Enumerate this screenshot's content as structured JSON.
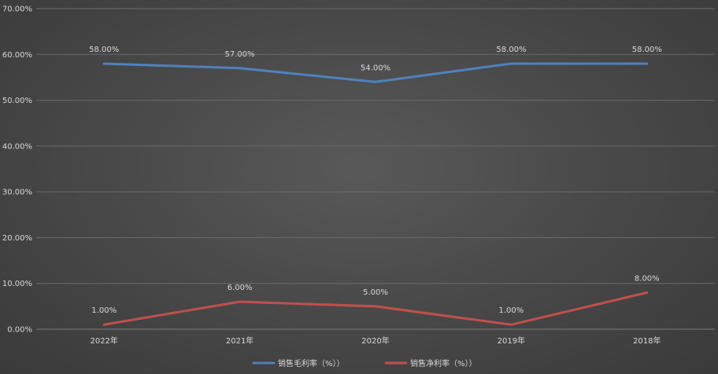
{
  "chart_data": {
    "type": "line",
    "title": "",
    "xlabel": "",
    "ylabel": "",
    "categories": [
      "2022年",
      "2021年",
      "2020年",
      "2019年",
      "2018年"
    ],
    "ylim": [
      0,
      70
    ],
    "yticks": [
      "0.00%",
      "10.00%",
      "20.00%",
      "30.00%",
      "40.00%",
      "50.00%",
      "60.00%",
      "70.00%"
    ],
    "grid": true,
    "legend_position": "bottom",
    "series": [
      {
        "name": "销售毛利率（%））",
        "color": "#4f81bd",
        "values": [
          58,
          57,
          54,
          58,
          58
        ],
        "labels": [
          "58.00%",
          "57.00%",
          "54.00%",
          "58.00%",
          "58.00%"
        ]
      },
      {
        "name": "销售净利率（%））",
        "color": "#c0504d",
        "values": [
          1,
          6,
          5,
          1,
          8
        ],
        "labels": [
          "1.00%",
          "6.00%",
          "5.00%",
          "1.00%",
          "8.00%"
        ]
      }
    ]
  }
}
